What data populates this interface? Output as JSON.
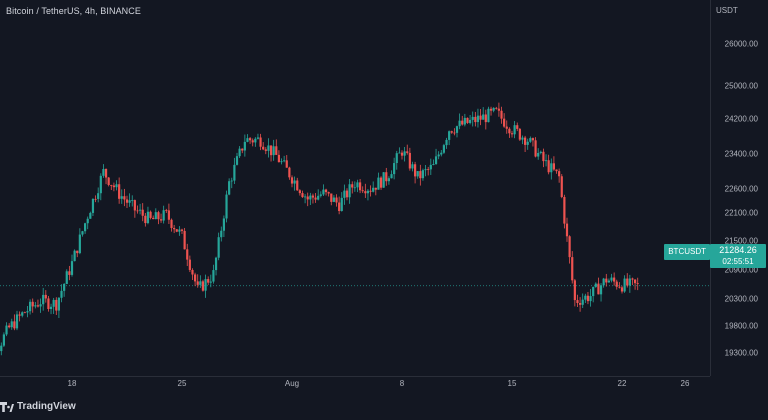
{
  "title": "Bitcoin / TetherUS, 4h, BINANCE",
  "currency": "USDT",
  "brand": "TradingView",
  "pair_label": "BTCUSDT",
  "price": "21284.26",
  "countdown": "02:55:51",
  "colors": {
    "up": "#26a69a",
    "down": "#ef5350",
    "background": "#131722",
    "text": "#b2b5be"
  },
  "y_ticks": [
    "26000.00",
    "25000.00",
    "24200.00",
    "23400.00",
    "22600.00",
    "22100.00",
    "21500.00",
    "20900.00",
    "20300.00",
    "19800.00",
    "19300.00"
  ],
  "x_ticks": [
    "18",
    "25",
    "Aug",
    "8",
    "15",
    "22",
    "26"
  ],
  "chart_data": {
    "type": "candlestick",
    "symbol": "Bitcoin / TetherUS",
    "interval": "4h",
    "exchange": "BINANCE",
    "y_unit": "USDT",
    "current_price": 21284.26,
    "x_tick_labels": [
      "18",
      "25",
      "Aug",
      "8",
      "15",
      "22",
      "26"
    ],
    "y_tick_labels": [
      26000,
      25000,
      24200,
      23400,
      22600,
      22100,
      21500,
      20900,
      20300,
      19800,
      19300
    ],
    "close_path": [
      [
        "2022-07-12",
        19400
      ],
      [
        "2022-07-13",
        20000
      ],
      [
        "2022-07-14",
        20500
      ],
      [
        "2022-07-15",
        20800
      ],
      [
        "2022-07-16",
        21000
      ],
      [
        "2022-07-17",
        20950
      ],
      [
        "2022-07-18",
        21700
      ],
      [
        "2022-07-19",
        22600
      ],
      [
        "2022-07-20",
        23400
      ],
      [
        "2022-07-21",
        23000
      ],
      [
        "2022-07-22",
        22700
      ],
      [
        "2022-07-23",
        22500
      ],
      [
        "2022-07-24",
        22600
      ],
      [
        "2022-07-25",
        22200
      ],
      [
        "2022-07-26",
        21200
      ],
      [
        "2022-07-27",
        21500
      ],
      [
        "2022-07-28",
        23200
      ],
      [
        "2022-07-29",
        24000
      ],
      [
        "2022-07-30",
        24000
      ],
      [
        "2022-07-31",
        23700
      ],
      [
        "2022-08-01",
        23300
      ],
      [
        "2022-08-02",
        22900
      ],
      [
        "2022-08-03",
        23000
      ],
      [
        "2022-08-04",
        22800
      ],
      [
        "2022-08-05",
        23200
      ],
      [
        "2022-08-06",
        23100
      ],
      [
        "2022-08-07",
        23300
      ],
      [
        "2022-08-08",
        23800
      ],
      [
        "2022-08-09",
        23300
      ],
      [
        "2022-08-10",
        23500
      ],
      [
        "2022-08-11",
        24200
      ],
      [
        "2022-08-12",
        24300
      ],
      [
        "2022-08-13",
        24400
      ],
      [
        "2022-08-14",
        24500
      ],
      [
        "2022-08-15",
        24200
      ],
      [
        "2022-08-16",
        24000
      ],
      [
        "2022-08-17",
        23600
      ],
      [
        "2022-08-18",
        23300
      ],
      [
        "2022-08-19",
        21000
      ],
      [
        "2022-08-20",
        21100
      ],
      [
        "2022-08-21",
        21400
      ],
      [
        "2022-08-22",
        21300
      ],
      [
        "2022-08-23",
        21284.26
      ]
    ]
  }
}
